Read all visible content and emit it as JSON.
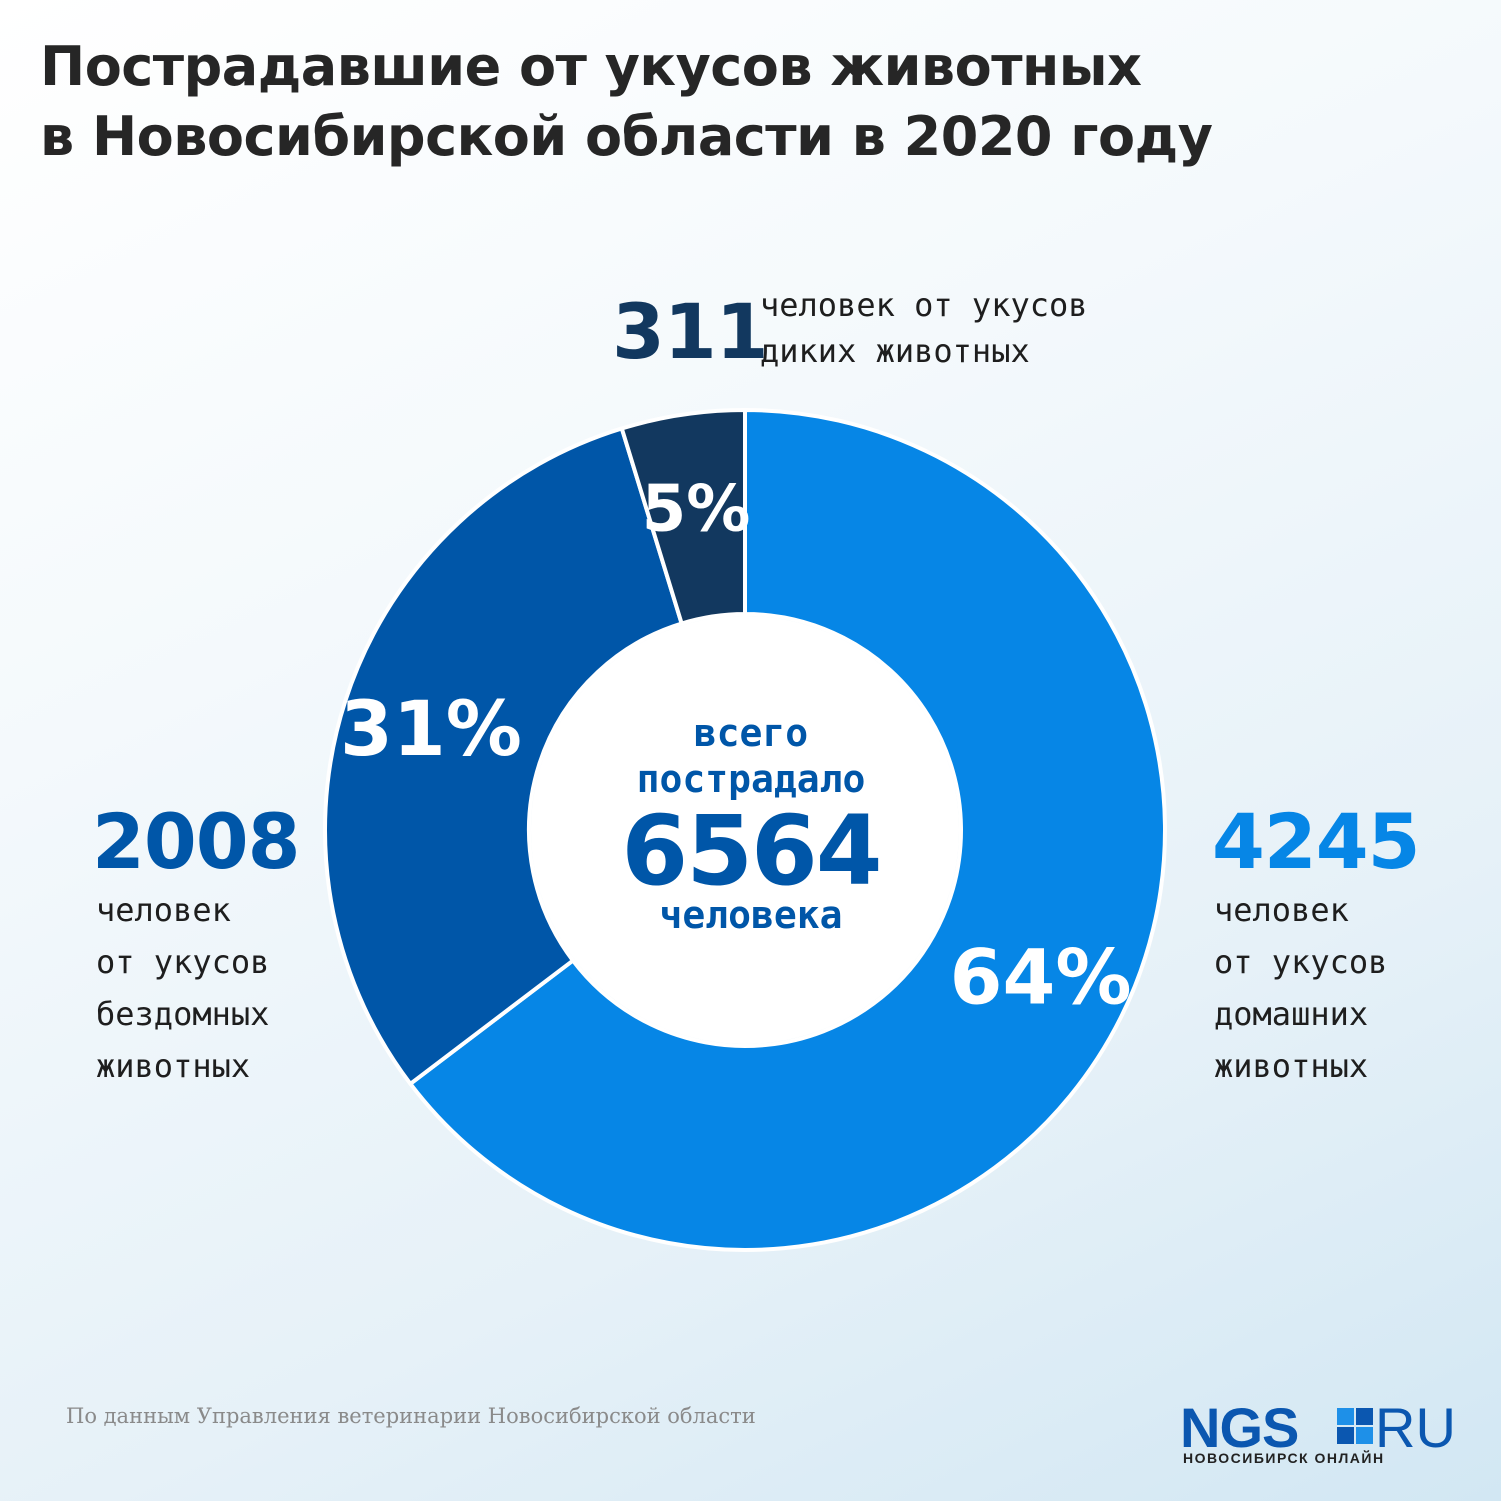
{
  "title": {
    "line1": "Пострадавшие от укусов животных",
    "line2": "в Новосибирской области в 2020 году"
  },
  "chart_data": {
    "type": "pie",
    "style": "donut",
    "slices": [
      {
        "key": "pets",
        "value": 4245,
        "percent_label": "64%",
        "color": "#0686e6"
      },
      {
        "key": "stray",
        "value": 2008,
        "percent_label": "31%",
        "color": "#0056a8"
      },
      {
        "key": "wild",
        "value": 311,
        "percent_label": "5%",
        "color": "#12385f"
      }
    ],
    "total": 6564
  },
  "labels": {
    "wild": {
      "value": "311",
      "line1": "человек от укусов",
      "line2": "диких животных"
    },
    "stray": {
      "value": "2008",
      "line1": "человек",
      "line2": "от укусов",
      "line3": "бездомных",
      "line4": "животных"
    },
    "pets": {
      "value": "4245",
      "line1": "человек",
      "line2": "от укусов",
      "line3": "домашних",
      "line4": "животных"
    }
  },
  "center": {
    "line1": "всего",
    "line2": "пострадало",
    "value": "6564",
    "line3": "человека"
  },
  "footer": {
    "source": "По данным Управления ветеринарии Новосибирской области",
    "logo_main": "NGS",
    "logo_domain": "RU",
    "logo_sub": "НОВОСИБИРСК ОНЛАЙН"
  },
  "colors": {
    "pets": "#0686e6",
    "stray": "#0056a8",
    "wild": "#12385f",
    "title": "#262626",
    "logo": "#0b57b0"
  }
}
